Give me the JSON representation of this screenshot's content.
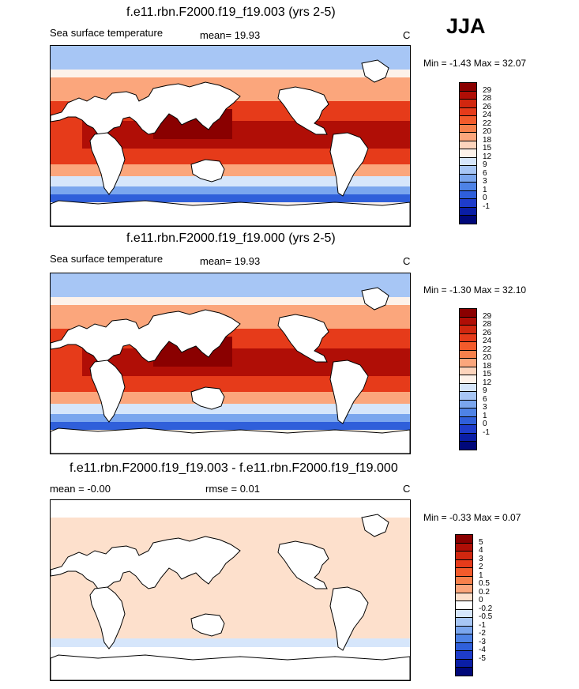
{
  "season": "JJA",
  "panels": [
    {
      "title": "f.e11.rbn.F2000.f19_f19.003 (yrs 2-5)",
      "left": "Sea surface temperature",
      "mid": "mean=  19.93",
      "unit": "C",
      "minmax": "Min =  -1.43 Max =  32.07",
      "colorbar_labels": [
        "29",
        "28",
        "26",
        "24",
        "22",
        "20",
        "18",
        "15",
        "12",
        "9",
        "6",
        "3",
        "1",
        "0",
        "-1"
      ]
    },
    {
      "title": "f.e11.rbn.F2000.f19_f19.000 (yrs 2-5)",
      "left": "Sea surface temperature",
      "mid": "mean=  19.93",
      "unit": "C",
      "minmax": "Min =  -1.30 Max =  32.10",
      "colorbar_labels": [
        "29",
        "28",
        "26",
        "24",
        "22",
        "20",
        "18",
        "15",
        "12",
        "9",
        "6",
        "3",
        "1",
        "0",
        "-1"
      ]
    },
    {
      "title": "f.e11.rbn.F2000.f19_f19.003 - f.e11.rbn.F2000.f19_f19.000",
      "left": "mean =  -0.00",
      "mid": "rmse =   0.01",
      "unit": "C",
      "minmax": "Min =  -0.33 Max =   0.07",
      "colorbar_labels": [
        "5",
        "4",
        "3",
        "2",
        "1",
        "0.5",
        "0.2",
        "0",
        "-0.2",
        "-0.5",
        "-1",
        "-2",
        "-3",
        "-4",
        "-5"
      ]
    }
  ],
  "colors": {
    "sst": [
      "#8a0000",
      "#b00e06",
      "#d1270f",
      "#e63b1a",
      "#f35b2b",
      "#f7814c",
      "#fba67c",
      "#fcd4bc",
      "#fdf2ea",
      "#d6e6fb",
      "#a7c6f5",
      "#7aa6ee",
      "#4e83e6",
      "#2f5fda",
      "#1e3ccb",
      "#0a1ea6",
      "#00087a"
    ],
    "diff": [
      "#8a0000",
      "#b00e06",
      "#d1270f",
      "#e63b1a",
      "#f35b2b",
      "#f7814c",
      "#fba67c",
      "#fde0cc",
      "#ffffff",
      "#d6e6fb",
      "#a7c6f5",
      "#7aa6ee",
      "#4e83e6",
      "#2f5fda",
      "#1e3ccb",
      "#0a1ea6",
      "#00087a"
    ]
  }
}
